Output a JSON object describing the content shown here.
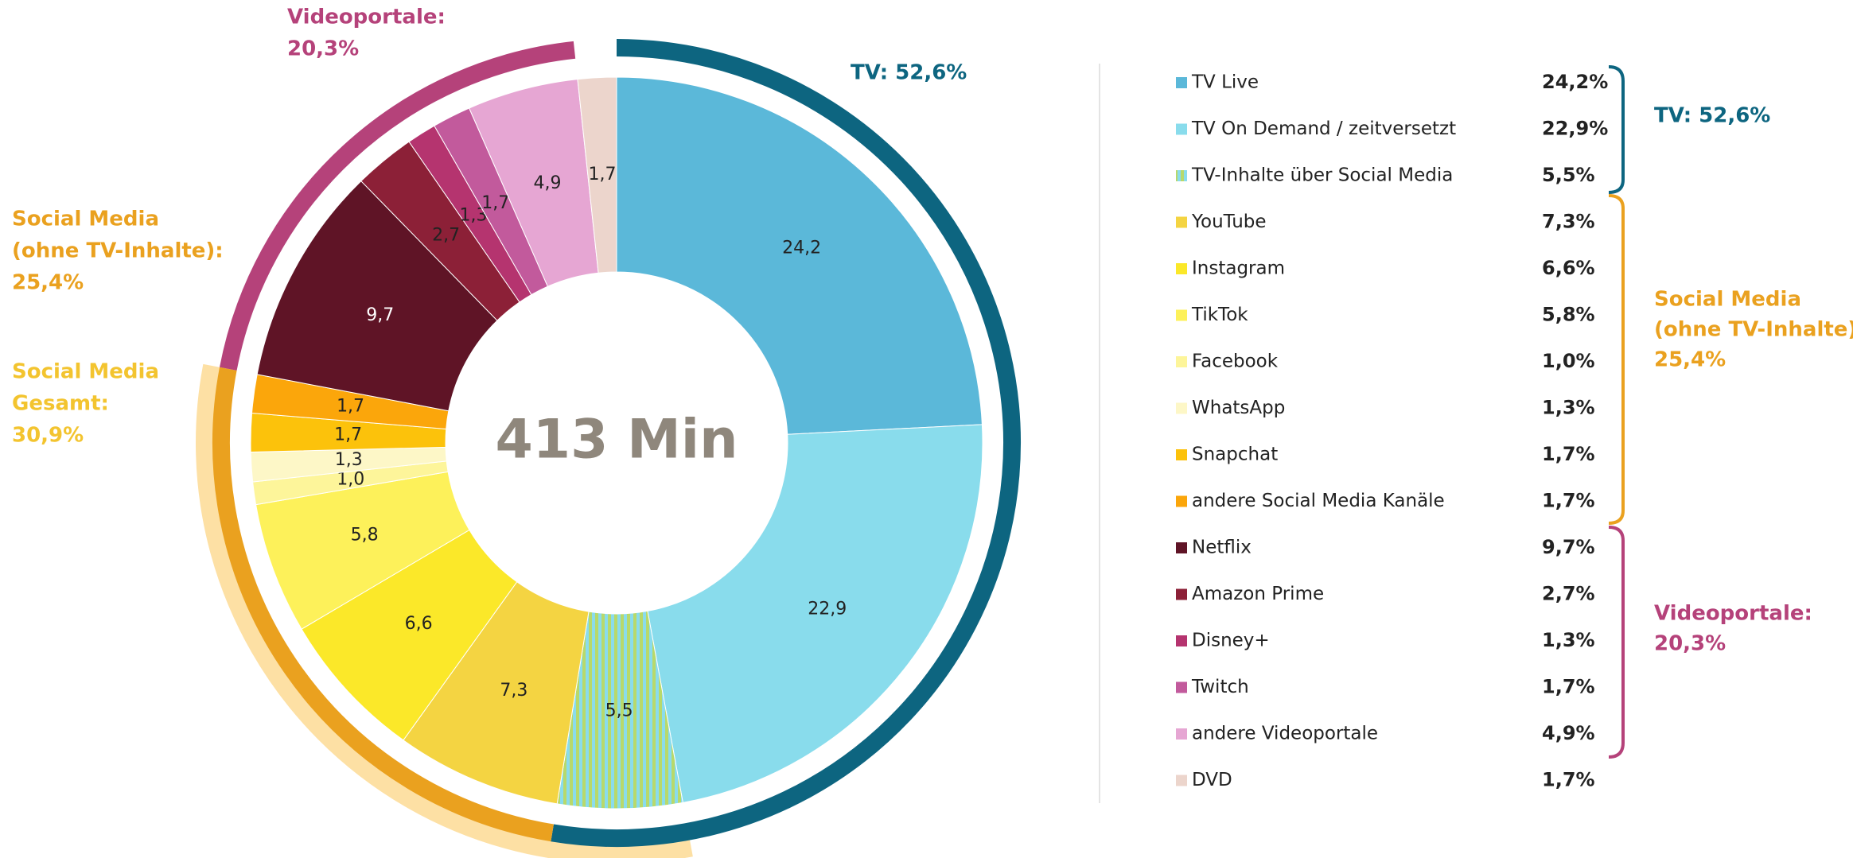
{
  "chart_data": {
    "type": "donut",
    "center_label": "413 Min",
    "categories": [
      "TV Live",
      "TV On Demand / zeitversetzt",
      "TV-Inhalte über Social Media",
      "YouTube",
      "Instagram",
      "TikTok",
      "Facebook",
      "WhatsApp",
      "Snapchat",
      "andere Social Media Kanäle",
      "Netflix",
      "Amazon Prime",
      "Disney+",
      "Twitch",
      "andere Videoportale",
      "DVD"
    ],
    "values": [
      24.2,
      22.9,
      5.5,
      7.3,
      6.6,
      5.8,
      1.0,
      1.3,
      1.7,
      1.7,
      9.7,
      2.7,
      1.3,
      1.7,
      4.9,
      1.7
    ],
    "value_labels": [
      "24,2",
      "22,9",
      "5,5",
      "7,3",
      "6,6",
      "5,8",
      "1,0",
      "1,3",
      "1,7",
      "1,7",
      "9,7",
      "2,7",
      "1,3",
      "1,7",
      "4,9",
      "1,7"
    ],
    "legend_value_labels": [
      "24,2%",
      "22,9%",
      "5,5%",
      "7,3%",
      "6,6%",
      "5,8%",
      "1,0%",
      "1,3%",
      "1,7%",
      "1,7%",
      "9,7%",
      "2,7%",
      "1,3%",
      "1,7%",
      "4,9%",
      "1,7%"
    ],
    "colors": [
      "#5bb8d9",
      "#89dcec",
      "#b8d96b",
      "#f4d442",
      "#fbe829",
      "#fdf15a",
      "#fdf59a",
      "#fdf7c7",
      "#fcc20b",
      "#fba60b",
      "#5f1426",
      "#8c2037",
      "#b5346f",
      "#c25a9c",
      "#e6a6d3",
      "#ecd5cc"
    ],
    "hatch": {
      "index": 2,
      "color": "#8adcec"
    },
    "groups": [
      {
        "lines": [
          "TV: 52,6%"
        ],
        "value": 52.6,
        "color": "#0d6580"
      },
      {
        "lines": [
          "Social Media",
          "(ohne TV-Inhalte):",
          "25,4%"
        ],
        "value": 25.4,
        "color": "#eaa11f"
      },
      {
        "lines": [
          "Videoportale:",
          "20,3%"
        ],
        "value": 20.3,
        "color": "#b5427a"
      }
    ],
    "total_group": {
      "lines": [
        "Social Media",
        "Gesamt:",
        "30,9%"
      ],
      "value": 30.9,
      "color": "#fde0a4",
      "text_color": "#f3c42f"
    }
  }
}
